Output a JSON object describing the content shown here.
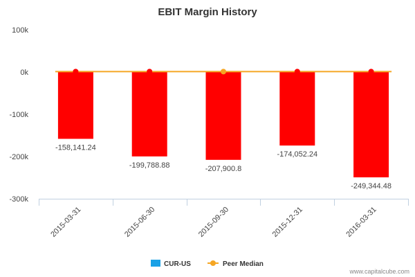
{
  "chart_data": {
    "type": "bar",
    "title": "EBIT Margin History",
    "xlabel": "",
    "ylabel": "",
    "categories": [
      "2015-03-31",
      "2015-06-30",
      "2015-09-30",
      "2015-12-31",
      "2016-03-31"
    ],
    "ylim": [
      -300000,
      100000
    ],
    "yticks": [
      100000,
      0,
      -100000,
      -200000,
      -300000
    ],
    "ytick_labels": [
      "100k",
      "0k",
      "-100k",
      "-200k",
      "-300k"
    ],
    "series": [
      {
        "name": "CUR-US",
        "type": "bar",
        "legend_color": "#1aa1e6",
        "bar_color": "#ff0000",
        "values": [
          -158141.24,
          -199788.88,
          -207900.8,
          -174052.24,
          -249344.48
        ],
        "data_labels": [
          "-158,141.24",
          "-199,788.88",
          "-207,900.8",
          "-174,052.24",
          "-249,344.48"
        ]
      },
      {
        "name": "Peer Median",
        "type": "line",
        "color": "#f5a623",
        "values": [
          1000,
          1000,
          1000,
          1000,
          1000
        ],
        "marker_colors": [
          "#ff0000",
          "#ff0000",
          "#f5a623",
          "#ff0000",
          "#ff0000"
        ]
      }
    ],
    "grid": false,
    "legend_position": "bottom-center"
  },
  "credit": "www.capitalcube.com"
}
